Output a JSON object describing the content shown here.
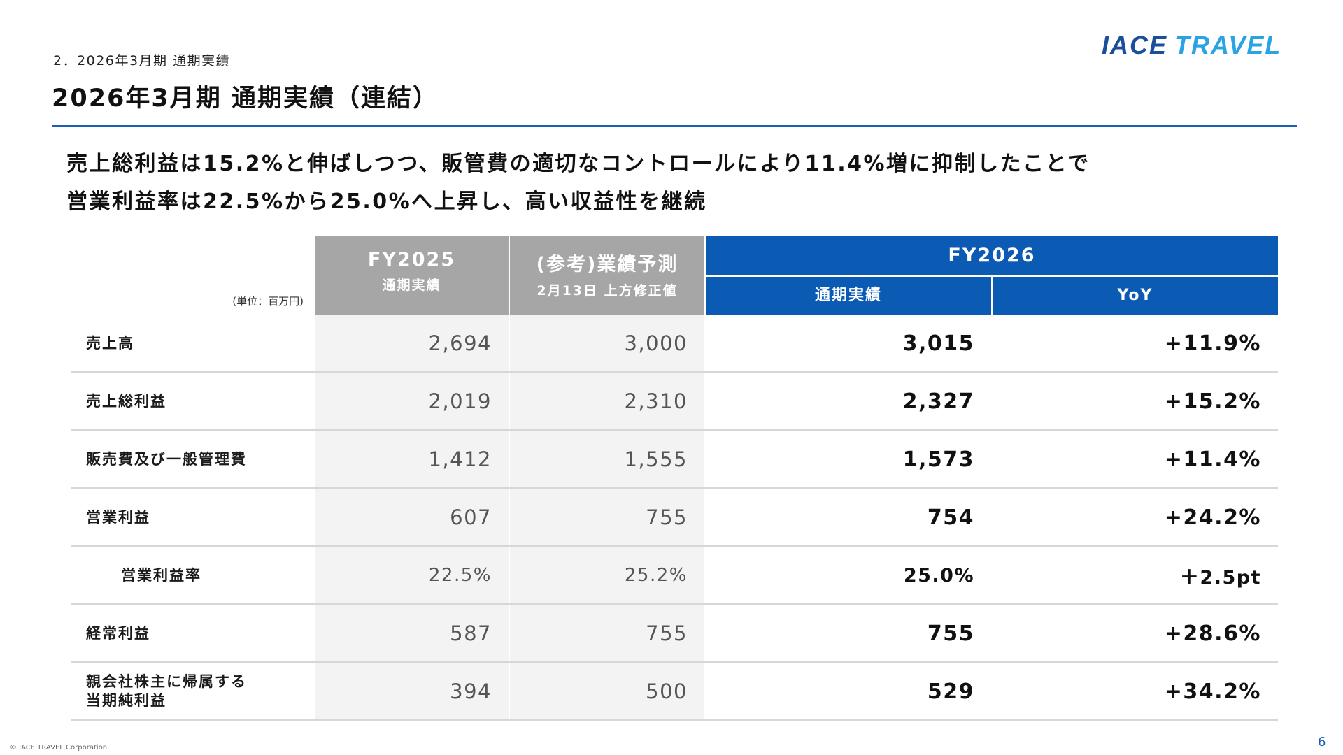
{
  "header": {
    "breadcrumb": "2．2026年3月期 通期実績",
    "title": "2026年3月期 通期実績（連結）",
    "logo_text": "IACE TRAVEL"
  },
  "summary": {
    "line1": "売上総利益は15.2%と伸ばしつつ、販管費の適切なコントロールにより11.4%増に抑制したことで",
    "line2": "営業利益率は22.5%から25.0%へ上昇し、高い収益性を継続"
  },
  "table": {
    "unit": "(単位：百万円)",
    "columns": {
      "fy2025": {
        "main": "FY2025",
        "sub": "通期実績"
      },
      "forecast": {
        "main": "(参考)業績予測",
        "sub": "2月13日 上方修正値"
      },
      "fy2026": {
        "main": "FY2026",
        "actual": "通期実績",
        "yoy": "YoY"
      }
    },
    "rows": [
      {
        "label": "売上高",
        "fy2025": "2,694",
        "forecast": "3,000",
        "actual": "3,015",
        "yoy": "+11.9%"
      },
      {
        "label": "売上総利益",
        "fy2025": "2,019",
        "forecast": "2,310",
        "actual": "2,327",
        "yoy": "+15.2%"
      },
      {
        "label": "販売費及び一般管理費",
        "fy2025": "1,412",
        "forecast": "1,555",
        "actual": "1,573",
        "yoy": "+11.4%"
      },
      {
        "label": "営業利益",
        "fy2025": "607",
        "forecast": "755",
        "actual": "754",
        "yoy": "+24.2%"
      },
      {
        "label": "営業利益率",
        "fy2025": "22.5%",
        "forecast": "25.2%",
        "actual": "25.0%",
        "yoy": "＋2.5pt"
      },
      {
        "label": "経常利益",
        "fy2025": "587",
        "forecast": "755",
        "actual": "755",
        "yoy": "+28.6%"
      },
      {
        "label_line1": "親会社株主に帰属する",
        "label_line2": "当期純利益",
        "fy2025": "394",
        "forecast": "500",
        "actual": "529",
        "yoy": "+34.2%"
      }
    ]
  },
  "footer": {
    "copyright": "© IACE TRAVEL Corporation.",
    "page_number": "6"
  },
  "colors": {
    "accent_blue": "#0b5bb5",
    "header_gray": "#a6a6a6",
    "cell_gray": "#f3f3f3",
    "logo_light_blue": "#2aa3e4",
    "logo_dark_blue": "#1a4f9c"
  }
}
